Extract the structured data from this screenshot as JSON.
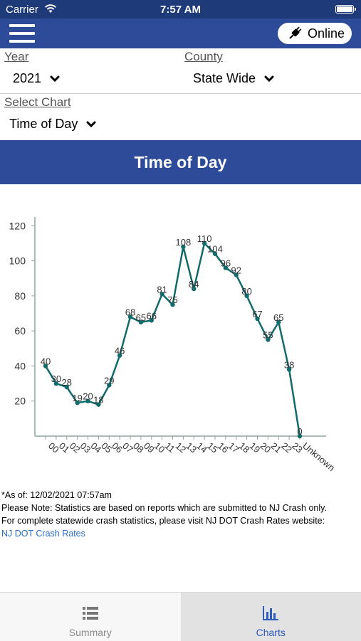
{
  "status_bar": {
    "carrier": "Carrier",
    "time": "7:57 AM"
  },
  "nav": {
    "online_label": "Online",
    "menu_icon": "hamburger-menu-icon",
    "online_icon": "plug-icon"
  },
  "filters": {
    "year_label": "Year",
    "year_value": "2021",
    "county_label": "County",
    "county_value": "State Wide",
    "chart_label": "Select Chart",
    "chart_value": "Time of Day"
  },
  "page_title": "Time of Day",
  "chart_data": {
    "type": "line",
    "categories": [
      "00",
      "01",
      "02",
      "03",
      "04",
      "05",
      "06",
      "07",
      "08",
      "09",
      "10",
      "11",
      "12",
      "13",
      "14",
      "15",
      "16",
      "17",
      "18",
      "19",
      "20",
      "21",
      "22",
      "23",
      "Unknown"
    ],
    "values": [
      40,
      30,
      28,
      19,
      20,
      18,
      29,
      46,
      68,
      65,
      66,
      81,
      75,
      108,
      84,
      110,
      104,
      96,
      92,
      80,
      67,
      55,
      65,
      38,
      0
    ],
    "data_labels": [
      "40",
      "30",
      "28",
      "19",
      "20",
      "18",
      "29",
      "46",
      "68",
      "65",
      "66",
      "81",
      "75",
      "108",
      "84",
      "110",
      "104",
      "96",
      "92",
      "80",
      "67",
      "55",
      "65",
      "38",
      "0"
    ],
    "y_ticks": [
      20,
      40,
      60,
      80,
      100,
      120
    ],
    "y_tick_labels": [
      "20",
      "40",
      "60",
      "80",
      "100",
      "120"
    ],
    "ylim": [
      0,
      125
    ],
    "line_color": "#126b6b",
    "grid": false
  },
  "notes": {
    "as_of": "*As of: 12/02/2021 07:57am",
    "line1": "Please Note: Statistics are based on reports which are submitted to NJ Crash only.",
    "line2": "For complete statewide crash statistics, please visit NJ DOT Crash Rates website:",
    "link": "NJ DOT Crash Rates"
  },
  "tabs": [
    {
      "label": "Summary",
      "icon": "list-icon"
    },
    {
      "label": "Charts",
      "icon": "bar-chart-icon"
    }
  ],
  "colors": {
    "primary": "#2d4b99",
    "status": "#1f3a78",
    "link": "#2a6fc9",
    "active_tab": "#2d5bbf"
  }
}
